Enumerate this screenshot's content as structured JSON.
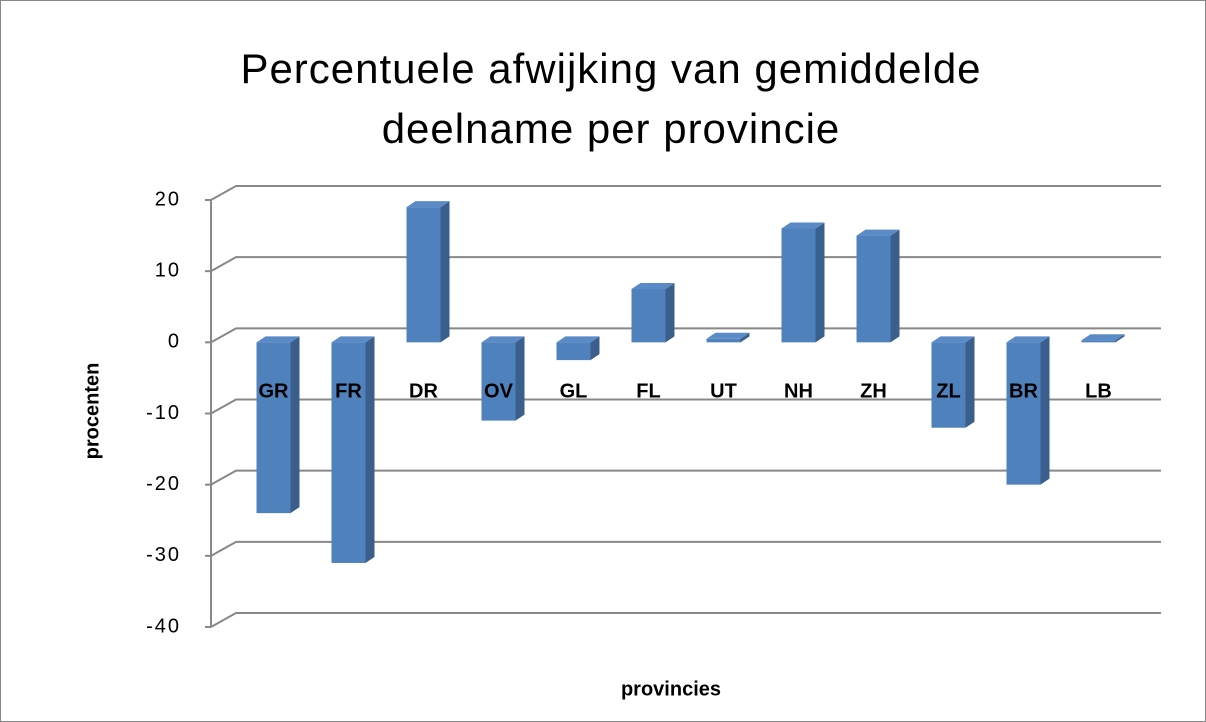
{
  "chart_data": {
    "type": "bar3d",
    "title": "Percentuele afwijking van gemiddelde deelname per provincie",
    "categories": [
      "GR",
      "FR",
      "DR",
      "OV",
      "GL",
      "FL",
      "UT",
      "NH",
      "ZH",
      "ZL",
      "BR",
      "LB"
    ],
    "values": [
      -24,
      -31,
      19,
      -11,
      -2.5,
      7.5,
      0.5,
      16,
      15,
      -12,
      -20,
      0.3
    ],
    "color": "#4f81bd",
    "ylim": [
      -40,
      20
    ],
    "yticks": [
      -40,
      -30,
      -20,
      -10,
      0,
      10,
      20
    ],
    "ylabel": "procenten",
    "xlabel": "provincies",
    "grid": true
  }
}
